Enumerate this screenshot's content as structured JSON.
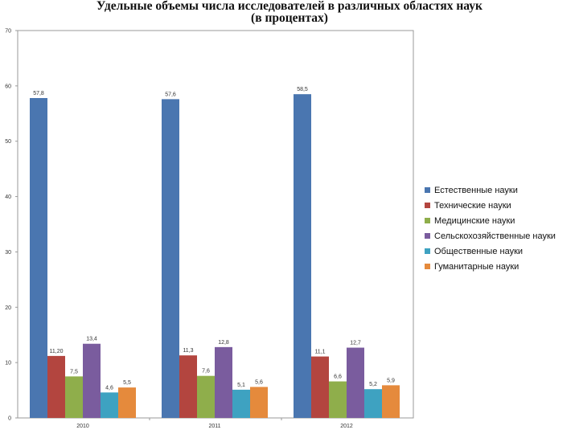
{
  "chart_data": {
    "type": "bar",
    "title": "Удельные объемы числа исследователей в различных областях наук",
    "subtitle": "(в процентах)",
    "categories": [
      "2010",
      "2011",
      "2012"
    ],
    "series": [
      {
        "name": "Естественные науки",
        "color": "#4a76b0",
        "values": [
          57.8,
          57.6,
          58.5
        ],
        "labels": [
          "57,8",
          "57,6",
          "58,5"
        ]
      },
      {
        "name": "Технические науки",
        "color": "#b3453f",
        "values": [
          11.2,
          11.3,
          11.1
        ],
        "labels": [
          "11,20",
          "11,3",
          "11,1"
        ]
      },
      {
        "name": "Медицинские науки",
        "color": "#8fae4b",
        "values": [
          7.5,
          7.6,
          6.6
        ],
        "labels": [
          "7,5",
          "7,6",
          "6,6"
        ]
      },
      {
        "name": "Сельскохозяйственные науки",
        "color": "#7a5c9e",
        "values": [
          13.4,
          12.8,
          12.7
        ],
        "labels": [
          "13,4",
          "12,8",
          "12,7"
        ]
      },
      {
        "name": "Общественные науки",
        "color": "#3ea2c1",
        "values": [
          4.6,
          5.1,
          5.2
        ],
        "labels": [
          "4,6",
          "5,1",
          "5,2"
        ]
      },
      {
        "name": "Гуманитарные науки",
        "color": "#e58a3c",
        "values": [
          5.5,
          5.6,
          5.9
        ],
        "labels": [
          "5,5",
          "5,6",
          "5,9"
        ]
      }
    ],
    "ylim": [
      0,
      70
    ],
    "yticks": [
      "0",
      "10",
      "20",
      "30",
      "40",
      "50",
      "60",
      "70"
    ],
    "grid": false,
    "legend": "right"
  }
}
